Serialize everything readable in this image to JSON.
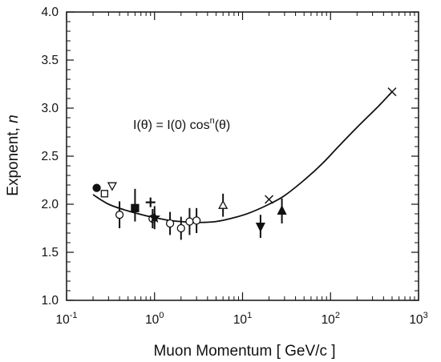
{
  "chart_data": {
    "type": "scatter",
    "xlabel": "Muon Momentum [ GeV/c ]",
    "ylabel_prefix": "Exponent, ",
    "ylabel_var": "n",
    "xscale": "log",
    "xlim": [
      0.1,
      1000
    ],
    "ylim": [
      1.0,
      4.0
    ],
    "x_tick_labels": [
      {
        "base": "10",
        "exp": "-1",
        "value": 0.1
      },
      {
        "base": "10",
        "exp": "0",
        "value": 1
      },
      {
        "base": "10",
        "exp": "1",
        "value": 10
      },
      {
        "base": "10",
        "exp": "2",
        "value": 100
      },
      {
        "base": "10",
        "exp": "3",
        "value": 1000
      }
    ],
    "y_ticks": [
      1.0,
      1.5,
      2.0,
      2.5,
      3.0,
      3.5,
      4.0
    ],
    "y_tick_labels": [
      "1.0",
      "1.5",
      "2.0",
      "2.5",
      "3.0",
      "3.5",
      "4.0"
    ],
    "annotation": {
      "pre": "I(θ) = I(0) cos",
      "sup": "n",
      "post": "(θ)"
    },
    "grid": false,
    "fit_curve": [
      {
        "x": 0.2,
        "y": 2.1
      },
      {
        "x": 0.3,
        "y": 2.0
      },
      {
        "x": 0.5,
        "y": 1.93
      },
      {
        "x": 0.8,
        "y": 1.88
      },
      {
        "x": 1.0,
        "y": 1.86
      },
      {
        "x": 1.5,
        "y": 1.83
      },
      {
        "x": 2.0,
        "y": 1.82
      },
      {
        "x": 3.0,
        "y": 1.81
      },
      {
        "x": 5.0,
        "y": 1.82
      },
      {
        "x": 8.0,
        "y": 1.86
      },
      {
        "x": 12,
        "y": 1.91
      },
      {
        "x": 20,
        "y": 2.0
      },
      {
        "x": 30,
        "y": 2.09
      },
      {
        "x": 50,
        "y": 2.25
      },
      {
        "x": 80,
        "y": 2.42
      },
      {
        "x": 120,
        "y": 2.59
      },
      {
        "x": 200,
        "y": 2.8
      },
      {
        "x": 350,
        "y": 3.02
      },
      {
        "x": 500,
        "y": 3.17
      }
    ],
    "points": [
      {
        "x": 0.22,
        "y": 2.17,
        "marker": "filled-circle"
      },
      {
        "x": 0.27,
        "y": 2.11,
        "marker": "open-square"
      },
      {
        "x": 0.33,
        "y": 2.19,
        "marker": "open-down-triangle"
      },
      {
        "x": 0.4,
        "y": 1.89,
        "marker": "open-circle",
        "err_lo": 0.14,
        "err_hi": 0.14
      },
      {
        "x": 0.6,
        "y": 1.96,
        "marker": "filled-square",
        "err_lo": 0.14,
        "err_hi": 0.2
      },
      {
        "x": 0.9,
        "y": 2.02,
        "marker": "plus"
      },
      {
        "x": 0.95,
        "y": 1.85,
        "marker": "open-circle",
        "err_lo": 0.1,
        "err_hi": 0.1
      },
      {
        "x": 1.0,
        "y": 1.86,
        "marker": "filled-star",
        "err_lo": 0.12,
        "err_hi": 0.12
      },
      {
        "x": 1.5,
        "y": 1.8,
        "marker": "open-circle",
        "err_lo": 0.12,
        "err_hi": 0.12
      },
      {
        "x": 2.0,
        "y": 1.75,
        "marker": "open-circle",
        "err_lo": 0.12,
        "err_hi": 0.12
      },
      {
        "x": 2.5,
        "y": 1.82,
        "marker": "open-circle",
        "err_lo": 0.14,
        "err_hi": 0.14
      },
      {
        "x": 3.0,
        "y": 1.83,
        "marker": "open-circle",
        "err_lo": 0.13,
        "err_hi": 0.13
      },
      {
        "x": 6.0,
        "y": 1.99,
        "marker": "open-up-triangle",
        "err_lo": 0.12,
        "err_hi": 0.12
      },
      {
        "x": 16.0,
        "y": 1.77,
        "marker": "filled-down-triangle",
        "err_lo": 0.12,
        "err_hi": 0.12
      },
      {
        "x": 20.0,
        "y": 2.05,
        "marker": "cross"
      },
      {
        "x": 28.0,
        "y": 1.93,
        "marker": "filled-up-triangle",
        "err_lo": 0.13,
        "err_hi": 0.13
      },
      {
        "x": 500,
        "y": 3.17,
        "marker": "cross"
      }
    ]
  }
}
